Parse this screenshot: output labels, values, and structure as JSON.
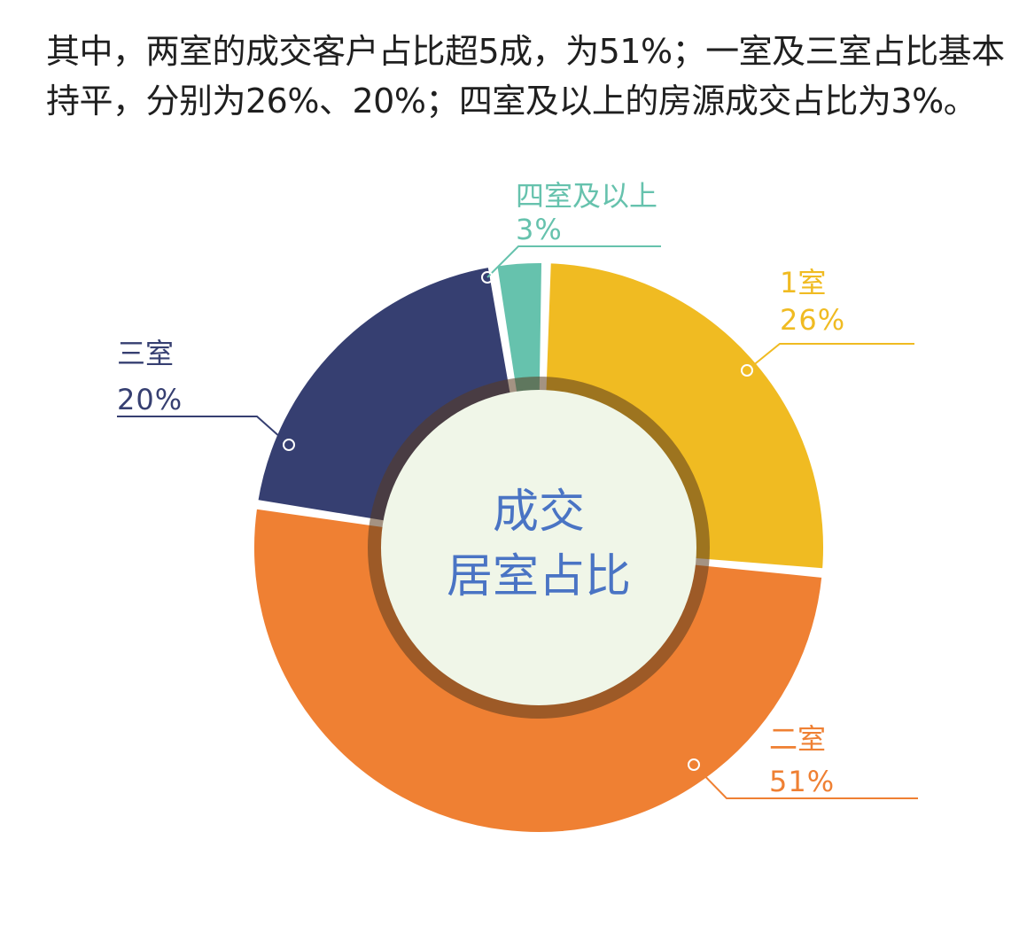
{
  "intro": {
    "line1": "其中，两室的成交客户占比超5成，为51%；一室及三室占比基本",
    "line2": "持平，分别为26%、20%；四室及以上的房源成交占比为3%。"
  },
  "center": {
    "line1": "成交",
    "line2": "居室占比"
  },
  "chart_data": {
    "type": "pie",
    "title": "成交居室占比",
    "unit": "%",
    "slices": [
      {
        "category": "1室",
        "value": 26,
        "value_label": "26%",
        "color": "#f0bb22"
      },
      {
        "category": "二室",
        "value": 51,
        "value_label": "51%",
        "color": "#ef8033"
      },
      {
        "category": "三室",
        "value": 20,
        "value_label": "20%",
        "color": "#363f71"
      },
      {
        "category": "四室及以上",
        "value": 3,
        "value_label": "3%",
        "color": "#66c2ad"
      }
    ],
    "center_fill": "#f0f6e8",
    "ring_shadow": "#5a3a1e"
  }
}
